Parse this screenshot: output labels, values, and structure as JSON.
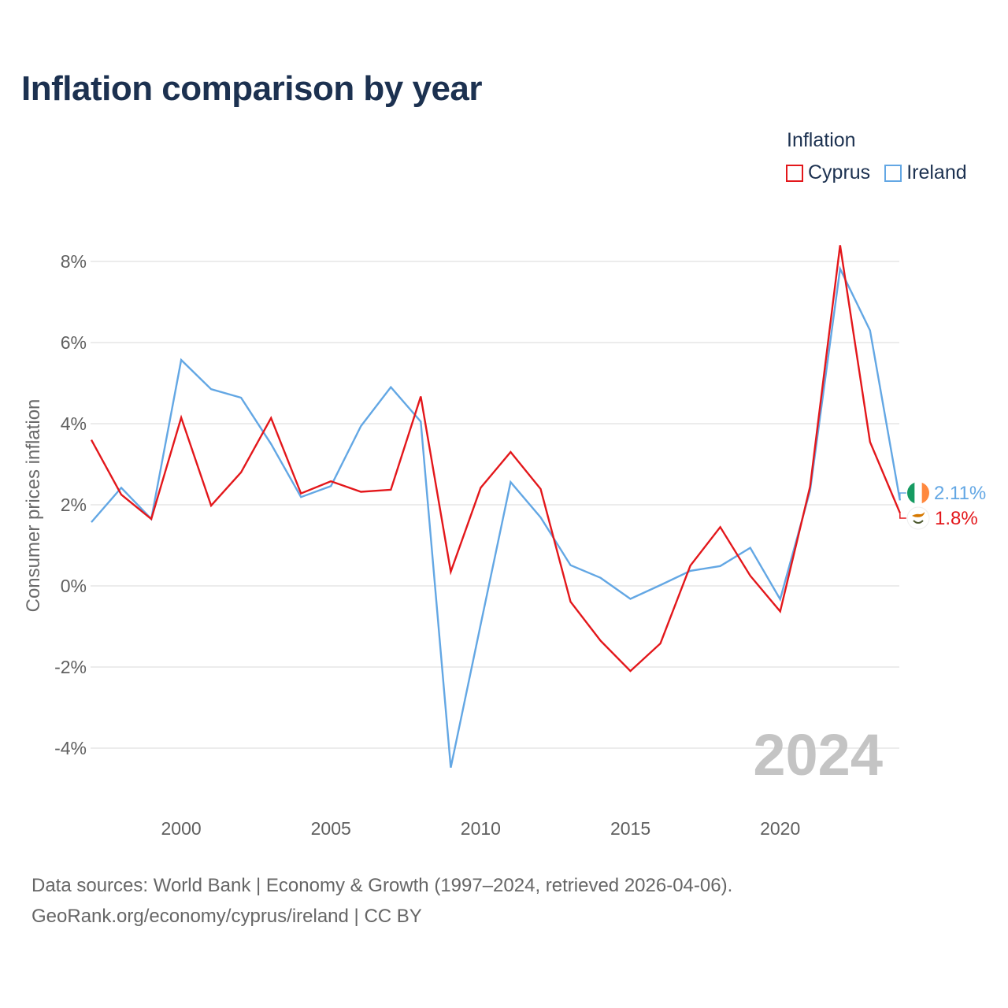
{
  "title": "Inflation comparison by year",
  "legend": {
    "title": "Inflation",
    "items": [
      {
        "name": "Cyprus",
        "color": "#e3171b"
      },
      {
        "name": "Ireland",
        "color": "#63a7e4"
      }
    ]
  },
  "footer": {
    "line1": "Data sources: World Bank | Economy & Growth (1997–2024, retrieved 2026-04-06).",
    "line2": "GeoRank.org/economy/cyprus/ireland | CC BY"
  },
  "chart_data": {
    "type": "line",
    "title": "Inflation comparison by year",
    "xlabel": "",
    "ylabel": "Consumer prices inflation",
    "xlim": [
      1997,
      2024
    ],
    "ylim": [
      -5,
      9
    ],
    "x_ticks": [
      2000,
      2005,
      2010,
      2015,
      2020
    ],
    "y_ticks": [
      8,
      6,
      4,
      2,
      0,
      -2,
      -4
    ],
    "y_tick_labels": [
      "8%",
      "6%",
      "4%",
      "2%",
      "0%",
      "-2%",
      "-4%"
    ],
    "x": [
      1997,
      1998,
      1999,
      2000,
      2001,
      2002,
      2003,
      2004,
      2005,
      2006,
      2007,
      2008,
      2009,
      2010,
      2011,
      2012,
      2013,
      2014,
      2015,
      2016,
      2017,
      2018,
      2019,
      2020,
      2021,
      2022,
      2023,
      2024
    ],
    "series": [
      {
        "name": "Cyprus",
        "color": "#e3171b",
        "end_label": "1.8%",
        "values": [
          3.6,
          2.25,
          1.65,
          4.15,
          1.98,
          2.8,
          4.14,
          2.28,
          2.58,
          2.32,
          2.37,
          4.67,
          0.35,
          2.42,
          3.3,
          2.39,
          -0.39,
          -1.35,
          -2.1,
          -1.42,
          0.5,
          1.45,
          0.25,
          -0.63,
          2.45,
          8.4,
          3.55,
          1.8
        ]
      },
      {
        "name": "Ireland",
        "color": "#63a7e4",
        "end_label": "2.11%",
        "values": [
          1.57,
          2.42,
          1.65,
          5.57,
          4.85,
          4.64,
          3.5,
          2.19,
          2.46,
          3.94,
          4.9,
          4.05,
          -4.48,
          -0.95,
          2.56,
          1.69,
          0.51,
          0.2,
          -0.32,
          0.02,
          0.37,
          0.49,
          0.94,
          -0.33,
          2.35,
          7.82,
          6.3,
          2.11
        ]
      }
    ],
    "watermark_year": "2024"
  }
}
